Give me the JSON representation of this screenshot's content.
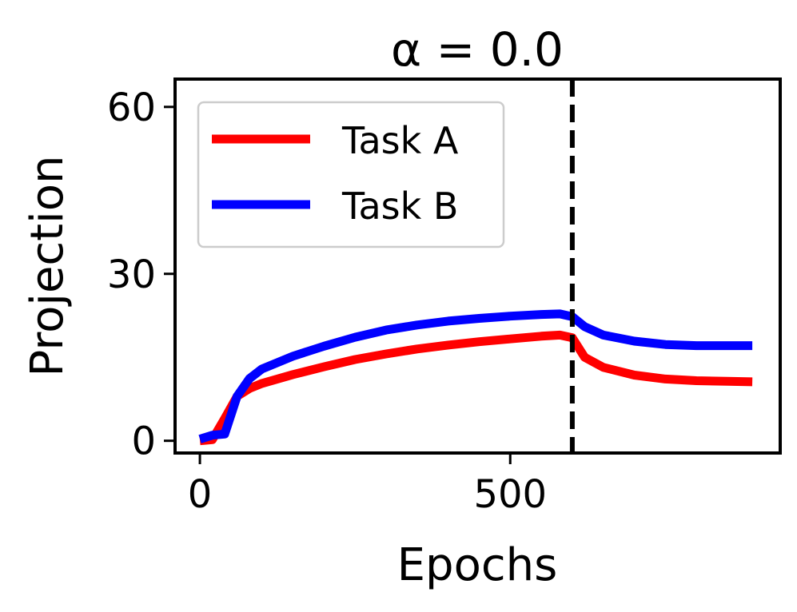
{
  "chart_data": {
    "type": "line",
    "title": "α = 0.0",
    "xlabel": "Epochs",
    "ylabel": "Projection",
    "xlim": [
      -40,
      935
    ],
    "ylim": [
      -2.2,
      65
    ],
    "xticks": [
      0,
      500
    ],
    "yticks": [
      0,
      30,
      60
    ],
    "xtick_labels": [
      "0",
      "500"
    ],
    "ytick_labels": [
      "0",
      "30",
      "60"
    ],
    "grid": false,
    "legend_position": "top-left",
    "vline": {
      "x": 600,
      "style": "dashed",
      "color": "#000000"
    },
    "series": [
      {
        "name": "Task A",
        "color": "#ff0000",
        "x": [
          0,
          20,
          40,
          60,
          80,
          100,
          150,
          200,
          250,
          300,
          350,
          400,
          450,
          500,
          550,
          580,
          600,
          620,
          650,
          700,
          750,
          800,
          850,
          890
        ],
        "y": [
          0,
          0.2,
          4,
          8,
          9.4,
          10.3,
          11.9,
          13.3,
          14.6,
          15.6,
          16.5,
          17.2,
          17.8,
          18.3,
          18.8,
          19,
          18.5,
          15,
          13.2,
          11.8,
          11.1,
          10.8,
          10.7,
          10.6
        ]
      },
      {
        "name": "Task B",
        "color": "#0000ff",
        "x": [
          0,
          20,
          40,
          60,
          80,
          100,
          150,
          200,
          250,
          300,
          350,
          400,
          450,
          500,
          550,
          580,
          600,
          620,
          650,
          700,
          750,
          800,
          850,
          890
        ],
        "y": [
          0.3,
          1,
          1.2,
          8,
          11.2,
          12.9,
          15.2,
          17,
          18.6,
          19.9,
          20.8,
          21.5,
          22,
          22.4,
          22.7,
          22.8,
          22.3,
          20.5,
          19,
          17.9,
          17.3,
          17.1,
          17.1,
          17.1
        ]
      }
    ]
  }
}
